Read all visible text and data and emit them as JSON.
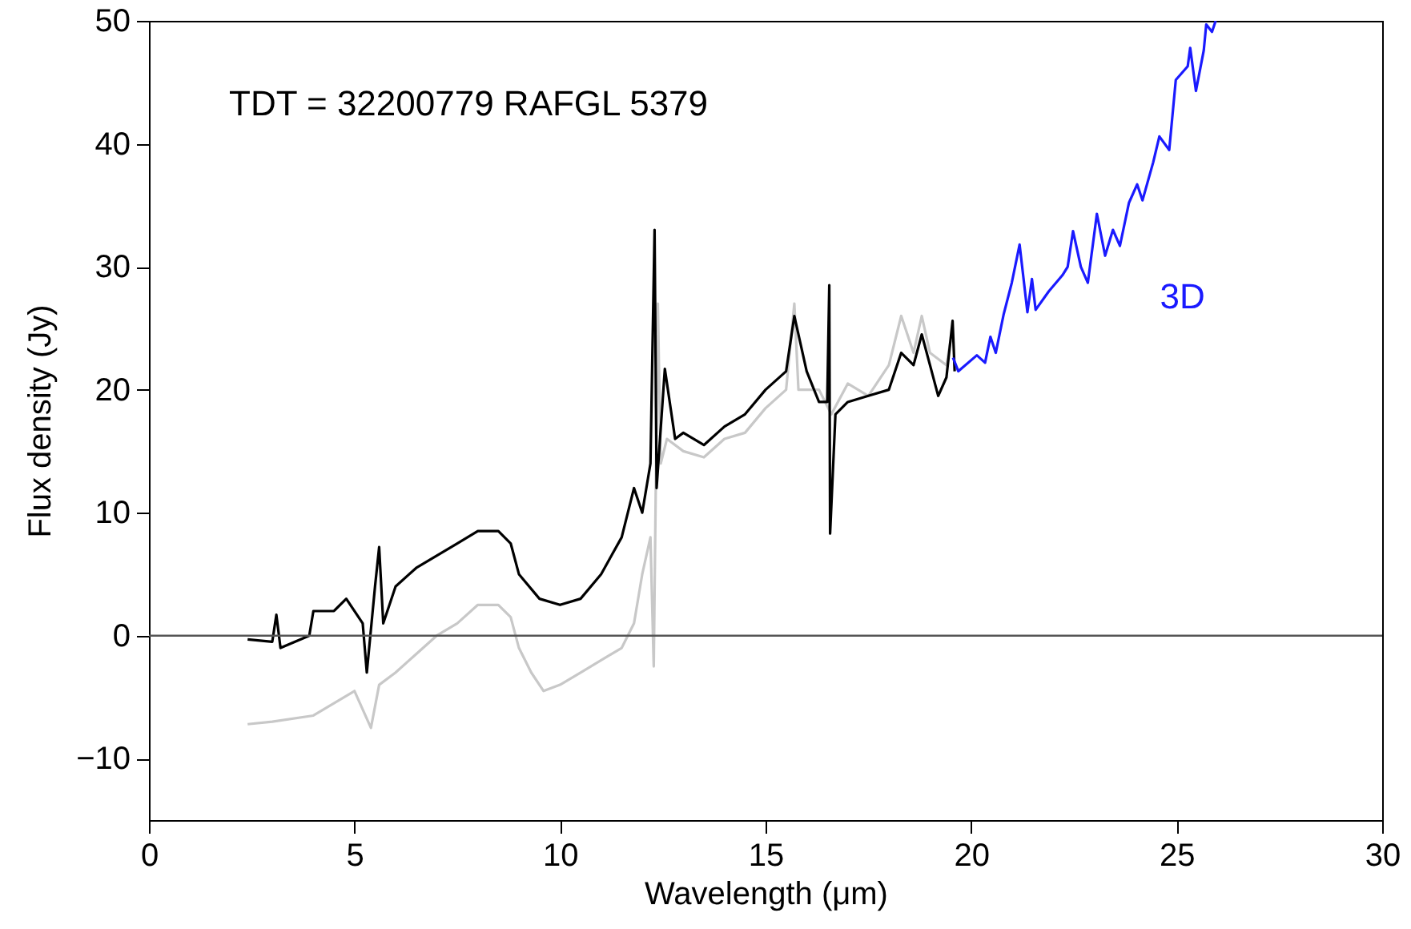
{
  "chart_data": {
    "type": "line",
    "xlabel": "Wavelength (μm)",
    "ylabel": "Flux density (Jy)",
    "annotations": [
      "TDT = 32200779   RAFGL 5379"
    ],
    "xlim": [
      0,
      30
    ],
    "xticks": [
      0,
      5,
      10,
      15,
      20,
      25,
      30
    ],
    "ylim": [
      -15,
      50
    ],
    "yticks": [
      -10,
      0,
      10,
      20,
      30,
      40,
      50
    ],
    "ref_lines": [
      {
        "axis": "y",
        "value": 0,
        "color": "#555555"
      }
    ],
    "series": [
      {
        "color": "#c8c8c8",
        "x": [
          2.4,
          3.0,
          4.0,
          4.5,
          5.0,
          5.2,
          5.4,
          5.6,
          6.0,
          6.5,
          7.0,
          7.5,
          8.0,
          8.5,
          8.8,
          9.0,
          9.3,
          9.6,
          10.0,
          10.5,
          11.0,
          11.5,
          11.8,
          12.0,
          12.2,
          12.28,
          12.38,
          12.45,
          12.6,
          13.0,
          13.5,
          14.0,
          14.5,
          15.0,
          15.5,
          15.7,
          15.8,
          16.3,
          16.6,
          17.0,
          17.5,
          18.0,
          18.3,
          18.6,
          18.8,
          19.0,
          19.4,
          19.5
        ],
        "values": [
          -7.2,
          -7,
          -6.5,
          -5.5,
          -4.5,
          -6,
          -7.5,
          -4,
          -3,
          -1.5,
          0,
          1,
          2.5,
          2.5,
          1.5,
          -1,
          -3,
          -4.5,
          -4,
          -3,
          -2,
          -1,
          1,
          5,
          8,
          -2.5,
          27,
          14,
          16,
          15,
          14.5,
          16,
          16.5,
          18.5,
          20,
          27,
          20,
          20,
          18,
          20.5,
          19.5,
          22,
          26,
          23,
          26,
          23,
          22,
          24
        ]
      },
      {
        "color": "#000000",
        "x": [
          2.4,
          3.0,
          3.1,
          3.2,
          3.9,
          4.0,
          4.5,
          4.8,
          5.2,
          5.3,
          5.5,
          5.6,
          5.7,
          6.0,
          6.5,
          7.0,
          7.5,
          8.0,
          8.5,
          8.8,
          9.0,
          9.5,
          10.0,
          10.5,
          11.0,
          11.5,
          11.8,
          12.0,
          12.2,
          12.3,
          12.35,
          12.55,
          12.8,
          13.0,
          13.5,
          14.0,
          14.5,
          15.0,
          15.5,
          15.7,
          16.0,
          16.3,
          16.5,
          16.55,
          16.57,
          16.7,
          17.0,
          17.5,
          18.0,
          18.3,
          18.6,
          18.8,
          19.0,
          19.2,
          19.4,
          19.55,
          19.6
        ],
        "values": [
          -0.3,
          -0.5,
          1.7,
          -1,
          0,
          2,
          2,
          3,
          1,
          -3,
          4,
          7.2,
          1,
          4,
          5.5,
          6.5,
          7.5,
          8.5,
          8.5,
          7.5,
          5,
          3,
          2.5,
          3,
          5,
          8,
          12,
          10,
          14,
          33,
          12,
          21.7,
          16,
          16.5,
          15.5,
          17,
          18,
          20,
          21.5,
          26,
          21.5,
          19,
          19,
          28.5,
          8.3,
          18,
          19,
          19.5,
          20,
          23,
          22,
          24.5,
          22,
          19.5,
          21,
          25.6,
          21.5
        ]
      },
      {
        "name": "3D",
        "color": "#1a1aff",
        "x": [
          19.56,
          19.69,
          20.14,
          20.34,
          20.47,
          20.6,
          20.79,
          20.99,
          21.18,
          21.37,
          21.48,
          21.57,
          21.89,
          22.22,
          22.35,
          22.48,
          22.67,
          22.84,
          23.06,
          23.26,
          23.45,
          23.62,
          23.84,
          24.04,
          24.17,
          24.43,
          24.58,
          24.82,
          24.98,
          25.27,
          25.33,
          25.47,
          25.66,
          25.72,
          25.86,
          25.95
        ],
        "values": [
          22.6,
          21.5,
          22.8,
          22.2,
          24.3,
          23.0,
          26.1,
          28.7,
          31.8,
          26.3,
          29.0,
          26.5,
          28.0,
          29.3,
          30.0,
          32.9,
          30.0,
          28.7,
          34.3,
          30.9,
          33.0,
          31.7,
          35.2,
          36.7,
          35.4,
          38.5,
          40.6,
          39.5,
          45.2,
          46.3,
          47.8,
          44.3,
          47.6,
          49.7,
          49.1,
          50
        ]
      }
    ]
  }
}
